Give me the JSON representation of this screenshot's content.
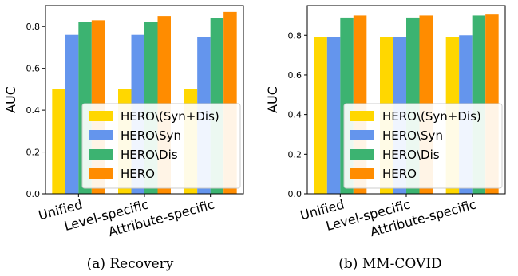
{
  "chart_data": [
    {
      "type": "bar",
      "caption": "(a) Recovery",
      "ylabel": "AUC",
      "categories": [
        "Unified",
        "Level-specific",
        "Attribute-specific"
      ],
      "ylim": [
        0,
        0.9
      ],
      "yticks": [
        "0.0",
        "0.2",
        "0.4",
        "0.6",
        "0.8"
      ],
      "ytick_values": [
        0,
        0.2,
        0.4,
        0.6,
        0.8
      ],
      "legend_position": "lower-right",
      "series": [
        {
          "name": "HERO\\(Syn+Dis)",
          "color": "#FFD700",
          "values": [
            0.5,
            0.5,
            0.5
          ]
        },
        {
          "name": "HERO\\Syn",
          "color": "#6495ED",
          "values": [
            0.76,
            0.76,
            0.75
          ]
        },
        {
          "name": "HERO\\Dis",
          "color": "#3CB371",
          "values": [
            0.82,
            0.82,
            0.84
          ]
        },
        {
          "name": "HERO",
          "color": "#FF8C00",
          "values": [
            0.83,
            0.85,
            0.87
          ]
        }
      ]
    },
    {
      "type": "bar",
      "caption": "(b) MM-COVID",
      "ylabel": "AUC",
      "categories": [
        "Unified",
        "Level-specific",
        "Attribute-specific"
      ],
      "ylim": [
        0,
        0.95
      ],
      "yticks": [
        "0.0",
        "0.2",
        "0.4",
        "0.6",
        "0.8"
      ],
      "ytick_values": [
        0,
        0.2,
        0.4,
        0.6,
        0.8
      ],
      "legend_position": "lower-right",
      "series": [
        {
          "name": "HERO\\(Syn+Dis)",
          "color": "#FFD700",
          "values": [
            0.79,
            0.79,
            0.79
          ]
        },
        {
          "name": "HERO\\Syn",
          "color": "#6495ED",
          "values": [
            0.79,
            0.79,
            0.8
          ]
        },
        {
          "name": "HERO\\Dis",
          "color": "#3CB371",
          "values": [
            0.89,
            0.89,
            0.9
          ]
        },
        {
          "name": "HERO",
          "color": "#FF8C00",
          "values": [
            0.9,
            0.9,
            0.905
          ]
        }
      ]
    }
  ]
}
